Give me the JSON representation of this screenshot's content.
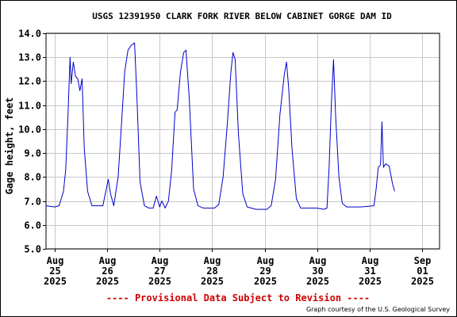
{
  "chart_data": {
    "type": "line",
    "title": "USGS 12391950 CLARK FORK RIVER BELOW CABINET GORGE DAM ID",
    "ylabel": "Gage height, feet",
    "xlabel": "",
    "ylim": [
      5.0,
      14.0
    ],
    "yticks": [
      "5.0",
      "6.0",
      "7.0",
      "8.0",
      "9.0",
      "10.0",
      "11.0",
      "12.0",
      "13.0",
      "14.0"
    ],
    "xlim": [
      "2025-08-24 20:00",
      "2025-09-01 08:00"
    ],
    "xticks": [
      {
        "t": "2025-08-25",
        "lines": [
          "Aug",
          "25",
          "2025"
        ]
      },
      {
        "t": "2025-08-26",
        "lines": [
          "Aug",
          "26",
          "2025"
        ]
      },
      {
        "t": "2025-08-27",
        "lines": [
          "Aug",
          "27",
          "2025"
        ]
      },
      {
        "t": "2025-08-28",
        "lines": [
          "Aug",
          "28",
          "2025"
        ]
      },
      {
        "t": "2025-08-29",
        "lines": [
          "Aug",
          "29",
          "2025"
        ]
      },
      {
        "t": "2025-08-30",
        "lines": [
          "Aug",
          "30",
          "2025"
        ]
      },
      {
        "t": "2025-08-31",
        "lines": [
          "Aug",
          "31",
          "2025"
        ]
      },
      {
        "t": "2025-09-01",
        "lines": [
          "Sep",
          "01",
          "2025"
        ]
      }
    ],
    "grid": true,
    "series": [
      {
        "color": "#0000cc",
        "points": [
          [
            "2025-08-24 20:00",
            6.8
          ],
          [
            "2025-08-25 00:00",
            6.75
          ],
          [
            "2025-08-25 02:00",
            6.8
          ],
          [
            "2025-08-25 04:00",
            7.4
          ],
          [
            "2025-08-25 05:00",
            8.3
          ],
          [
            "2025-08-25 06:00",
            10.5
          ],
          [
            "2025-08-25 07:00",
            13.0
          ],
          [
            "2025-08-25 07:30",
            11.9
          ],
          [
            "2025-08-25 08:30",
            12.8
          ],
          [
            "2025-08-25 09:30",
            12.2
          ],
          [
            "2025-08-25 10:30",
            12.1
          ],
          [
            "2025-08-25 11:30",
            11.6
          ],
          [
            "2025-08-25 12:30",
            12.1
          ],
          [
            "2025-08-25 13:30",
            9.2
          ],
          [
            "2025-08-25 15:00",
            7.4
          ],
          [
            "2025-08-25 17:00",
            6.8
          ],
          [
            "2025-08-25 22:00",
            6.8
          ],
          [
            "2025-08-26 00:30",
            7.9
          ],
          [
            "2025-08-26 01:30",
            7.3
          ],
          [
            "2025-08-26 03:00",
            6.8
          ],
          [
            "2025-08-26 05:00",
            8.0
          ],
          [
            "2025-08-26 06:30",
            10.2
          ],
          [
            "2025-08-26 08:00",
            12.4
          ],
          [
            "2025-08-26 09:30",
            13.3
          ],
          [
            "2025-08-26 11:00",
            13.5
          ],
          [
            "2025-08-26 12:30",
            13.6
          ],
          [
            "2025-08-26 13:30",
            11.5
          ],
          [
            "2025-08-26 15:00",
            7.8
          ],
          [
            "2025-08-26 17:00",
            6.8
          ],
          [
            "2025-08-26 19:00",
            6.7
          ],
          [
            "2025-08-26 21:00",
            6.7
          ],
          [
            "2025-08-26 22:30",
            7.2
          ],
          [
            "2025-08-27 00:00",
            6.75
          ],
          [
            "2025-08-27 01:00",
            7.0
          ],
          [
            "2025-08-27 02:30",
            6.7
          ],
          [
            "2025-08-27 04:00",
            7.0
          ],
          [
            "2025-08-27 05:30",
            8.3
          ],
          [
            "2025-08-27 07:00",
            10.7
          ],
          [
            "2025-08-27 08:00",
            10.8
          ],
          [
            "2025-08-27 09:30",
            12.4
          ],
          [
            "2025-08-27 11:00",
            13.2
          ],
          [
            "2025-08-27 12:00",
            13.3
          ],
          [
            "2025-08-27 13:30",
            11.3
          ],
          [
            "2025-08-27 15:30",
            7.5
          ],
          [
            "2025-08-27 17:30",
            6.8
          ],
          [
            "2025-08-27 20:00",
            6.7
          ],
          [
            "2025-08-28 01:00",
            6.7
          ],
          [
            "2025-08-28 03:00",
            6.85
          ],
          [
            "2025-08-28 05:00",
            8.0
          ],
          [
            "2025-08-28 07:00",
            10.3
          ],
          [
            "2025-08-28 08:30",
            12.3
          ],
          [
            "2025-08-28 09:30",
            13.2
          ],
          [
            "2025-08-28 10:30",
            12.9
          ],
          [
            "2025-08-28 12:00",
            9.8
          ],
          [
            "2025-08-28 14:00",
            7.3
          ],
          [
            "2025-08-28 16:00",
            6.75
          ],
          [
            "2025-08-28 20:00",
            6.65
          ],
          [
            "2025-08-29 01:00",
            6.65
          ],
          [
            "2025-08-29 03:00",
            6.8
          ],
          [
            "2025-08-29 05:00",
            7.9
          ],
          [
            "2025-08-29 07:00",
            10.6
          ],
          [
            "2025-08-29 09:00",
            12.3
          ],
          [
            "2025-08-29 10:00",
            12.8
          ],
          [
            "2025-08-29 11:00",
            11.7
          ],
          [
            "2025-08-29 12:30",
            9.2
          ],
          [
            "2025-08-29 14:30",
            7.1
          ],
          [
            "2025-08-29 16:30",
            6.7
          ],
          [
            "2025-08-30 00:00",
            6.7
          ],
          [
            "2025-08-30 03:00",
            6.65
          ],
          [
            "2025-08-30 04:30",
            6.7
          ],
          [
            "2025-08-30 05:30",
            8.4
          ],
          [
            "2025-08-30 06:30",
            11.0
          ],
          [
            "2025-08-30 07:30",
            12.9
          ],
          [
            "2025-08-30 08:30",
            10.5
          ],
          [
            "2025-08-30 10:00",
            8.0
          ],
          [
            "2025-08-30 11:30",
            6.9
          ],
          [
            "2025-08-30 13:30",
            6.75
          ],
          [
            "2025-08-30 20:00",
            6.75
          ],
          [
            "2025-08-31 02:00",
            6.8
          ],
          [
            "2025-08-31 03:00",
            7.5
          ],
          [
            "2025-08-31 04:00",
            8.4
          ],
          [
            "2025-08-31 05:00",
            8.5
          ],
          [
            "2025-08-31 05:40",
            10.3
          ],
          [
            "2025-08-31 06:20",
            8.4
          ],
          [
            "2025-08-31 07:20",
            8.55
          ],
          [
            "2025-08-31 09:00",
            8.45
          ],
          [
            "2025-08-31 10:30",
            7.7
          ],
          [
            "2025-08-31 11:30",
            7.4
          ]
        ]
      }
    ]
  },
  "footer": {
    "provisional": "---- Provisional Data Subject to Revision ----",
    "credit": "Graph courtesy of the U.S. Geological Survey"
  }
}
